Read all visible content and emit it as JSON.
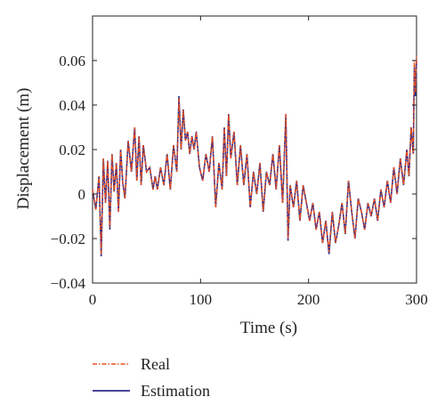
{
  "chart_data": {
    "type": "line",
    "title": "",
    "xlabel": "Time (s)",
    "ylabel": "Displacement (m)",
    "xlim": [
      0,
      300
    ],
    "ylim": [
      -0.04,
      0.08
    ],
    "xticks": [
      0,
      100,
      200,
      300
    ],
    "xtick_labels": [
      "0",
      "100",
      "200",
      "300"
    ],
    "yticks": [
      -0.04,
      -0.02,
      0,
      0.02,
      0.04,
      0.06
    ],
    "ytick_labels": [
      "−0.04",
      "−0.02",
      "0",
      "0.02",
      "0.04",
      "0.06"
    ],
    "grid": false,
    "legend_position": "below",
    "x": [
      0,
      3,
      6,
      8,
      10,
      12,
      14,
      16,
      18,
      20,
      22,
      24,
      26,
      28,
      30,
      33,
      36,
      39,
      41,
      43,
      45,
      47,
      50,
      53,
      56,
      58,
      60,
      63,
      66,
      69,
      72,
      75,
      78,
      80,
      82,
      84,
      86,
      88,
      90,
      92,
      94,
      96,
      99,
      102,
      105,
      108,
      111,
      114,
      117,
      120,
      122,
      124,
      126,
      128,
      131,
      134,
      137,
      140,
      143,
      146,
      149,
      152,
      155,
      158,
      161,
      164,
      167,
      170,
      173,
      176,
      179,
      181,
      183,
      186,
      189,
      192,
      195,
      198,
      201,
      204,
      207,
      210,
      213,
      216,
      219,
      222,
      225,
      228,
      231,
      234,
      237,
      240,
      243,
      246,
      249,
      252,
      255,
      258,
      261,
      264,
      267,
      270,
      273,
      276,
      279,
      282,
      285,
      288,
      291,
      293,
      295,
      297,
      298,
      299,
      300
    ],
    "series": [
      {
        "name": "Real",
        "color": "#e8501e",
        "style": "dash-dot",
        "values": [
          0.002,
          -0.007,
          0.008,
          -0.027,
          0.016,
          -0.004,
          0.015,
          -0.015,
          0.018,
          0.001,
          0.014,
          -0.008,
          0.02,
          0.005,
          -0.002,
          0.024,
          0.01,
          0.03,
          0.006,
          0.026,
          0.004,
          0.022,
          0.01,
          0.012,
          0.002,
          0.008,
          0.002,
          0.012,
          0.004,
          0.018,
          0.002,
          0.022,
          0.01,
          0.043,
          0.02,
          0.038,
          0.024,
          0.028,
          0.018,
          0.026,
          0.02,
          0.028,
          0.012,
          0.006,
          0.018,
          0.01,
          0.026,
          -0.006,
          0.014,
          0.002,
          0.03,
          0.008,
          0.036,
          0.016,
          0.028,
          0.004,
          0.022,
          0.004,
          0.018,
          -0.006,
          0.01,
          0.0,
          0.014,
          -0.008,
          0.01,
          0.004,
          0.018,
          0.002,
          0.022,
          -0.004,
          0.036,
          -0.02,
          0.004,
          -0.006,
          0.006,
          -0.012,
          0.004,
          -0.004,
          -0.012,
          -0.004,
          -0.016,
          -0.008,
          -0.022,
          -0.012,
          -0.026,
          -0.008,
          -0.022,
          -0.014,
          -0.004,
          -0.018,
          0.006,
          -0.008,
          -0.02,
          -0.002,
          -0.008,
          -0.016,
          -0.004,
          -0.01,
          -0.002,
          -0.012,
          0.002,
          -0.006,
          0.006,
          -0.004,
          0.012,
          0.0,
          0.016,
          0.004,
          0.02,
          0.008,
          0.03,
          0.018,
          0.06,
          0.046,
          0.062
        ]
      },
      {
        "name": "Estimation",
        "color": "#2e2a8c",
        "style": "solid",
        "values": [
          0.002,
          -0.007,
          0.008,
          -0.028,
          0.016,
          -0.004,
          0.015,
          -0.016,
          0.018,
          0.001,
          0.014,
          -0.008,
          0.02,
          0.005,
          -0.002,
          0.024,
          0.01,
          0.03,
          0.006,
          0.026,
          0.004,
          0.022,
          0.01,
          0.012,
          0.002,
          0.008,
          0.002,
          0.012,
          0.004,
          0.018,
          0.002,
          0.022,
          0.01,
          0.044,
          0.02,
          0.038,
          0.024,
          0.028,
          0.018,
          0.026,
          0.02,
          0.028,
          0.012,
          0.006,
          0.018,
          0.01,
          0.026,
          -0.006,
          0.014,
          0.002,
          0.03,
          0.008,
          0.036,
          0.016,
          0.028,
          0.004,
          0.022,
          0.004,
          0.018,
          -0.006,
          0.01,
          0.0,
          0.014,
          -0.008,
          0.01,
          0.004,
          0.018,
          0.002,
          0.022,
          -0.004,
          0.036,
          -0.021,
          0.004,
          -0.006,
          0.006,
          -0.012,
          0.004,
          -0.004,
          -0.012,
          -0.004,
          -0.016,
          -0.008,
          -0.022,
          -0.012,
          -0.027,
          -0.008,
          -0.022,
          -0.014,
          -0.004,
          -0.018,
          0.006,
          -0.008,
          -0.02,
          -0.002,
          -0.008,
          -0.016,
          -0.004,
          -0.01,
          -0.002,
          -0.012,
          0.002,
          -0.006,
          0.006,
          -0.004,
          0.012,
          0.0,
          0.016,
          0.004,
          0.02,
          0.008,
          0.03,
          0.018,
          0.058,
          0.044,
          0.06
        ]
      }
    ]
  }
}
